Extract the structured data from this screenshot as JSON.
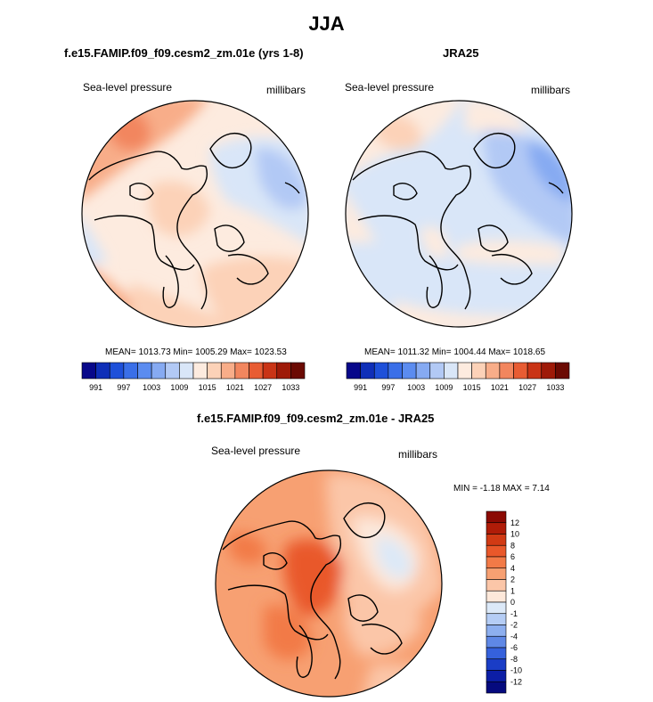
{
  "main_title": "JJA",
  "panels": [
    {
      "title": "f.e15.FAMIP.f09_f09.cesm2_zm.01e (yrs 1-8)",
      "variable": "Sea-level pressure",
      "units": "millibars",
      "stats": "MEAN= 1013.73  Min= 1005.29  Max= 1023.53"
    },
    {
      "title": "JRA25",
      "variable": "Sea-level pressure",
      "units": "millibars",
      "stats": "MEAN= 1011.32  Min= 1004.44  Max= 1018.65"
    },
    {
      "title": "f.e15.FAMIP.f09_f09.cesm2_zm.01e - JRA25",
      "variable": "Sea-level pressure",
      "units": "millibars",
      "stats": "MIN =  -1.18 MAX =   7.14"
    }
  ],
  "chart_data": [
    {
      "type": "heatmap",
      "projection": "north polar stereographic",
      "title": "f.e15.FAMIP.f09_f09.cesm2_zm.01e (yrs 1-8)",
      "variable": "Sea-level pressure",
      "units": "millibars",
      "mean": 1013.73,
      "min": 1005.29,
      "max": 1023.53,
      "colorbar": {
        "orientation": "horizontal",
        "levels": [
          991,
          994,
          997,
          1000,
          1003,
          1006,
          1009,
          1012,
          1015,
          1018,
          1021,
          1024,
          1027,
          1030,
          1033
        ],
        "tick_labels": [
          "991",
          "997",
          "1003",
          "1009",
          "1015",
          "1021",
          "1027",
          "1033"
        ],
        "colors": [
          "#08088a",
          "#0f2fb8",
          "#1e50d9",
          "#3a6fe8",
          "#5b8cf0",
          "#86aaf2",
          "#b2c9f5",
          "#d9e6f8",
          "#fdebdf",
          "#fcd2b8",
          "#f8ad89",
          "#f2865e",
          "#e85c33",
          "#c93416",
          "#9e1a08",
          "#6b0a03"
        ]
      }
    },
    {
      "type": "heatmap",
      "projection": "north polar stereographic",
      "title": "JRA25",
      "variable": "Sea-level pressure",
      "units": "millibars",
      "mean": 1011.32,
      "min": 1004.44,
      "max": 1018.65,
      "colorbar": {
        "orientation": "horizontal",
        "levels": [
          991,
          994,
          997,
          1000,
          1003,
          1006,
          1009,
          1012,
          1015,
          1018,
          1021,
          1024,
          1027,
          1030,
          1033
        ],
        "tick_labels": [
          "991",
          "997",
          "1003",
          "1009",
          "1015",
          "1021",
          "1027",
          "1033"
        ],
        "colors": [
          "#08088a",
          "#0f2fb8",
          "#1e50d9",
          "#3a6fe8",
          "#5b8cf0",
          "#86aaf2",
          "#b2c9f5",
          "#d9e6f8",
          "#fdebdf",
          "#fcd2b8",
          "#f8ad89",
          "#f2865e",
          "#e85c33",
          "#c93416",
          "#9e1a08",
          "#6b0a03"
        ]
      }
    },
    {
      "type": "heatmap",
      "projection": "north polar stereographic",
      "title": "f.e15.FAMIP.f09_f09.cesm2_zm.01e - JRA25",
      "variable": "Sea-level pressure",
      "units": "millibars",
      "min": -1.18,
      "max": 7.14,
      "colorbar": {
        "orientation": "vertical",
        "levels": [
          12,
          10,
          8,
          6,
          4,
          2,
          1,
          0,
          -1,
          -2,
          -4,
          -6,
          -8,
          -10,
          -12
        ],
        "tick_labels": [
          "12",
          "10",
          "8",
          "6",
          "4",
          "2",
          "1",
          "0",
          "-1",
          "-2",
          "-4",
          "-6",
          "-8",
          "-10",
          "-12"
        ],
        "colors": [
          "#8b0a03",
          "#b01c08",
          "#d13a14",
          "#e9582a",
          "#f27a47",
          "#f7a072",
          "#fbc6a8",
          "#fde8da",
          "#dce9f8",
          "#b5cdf5",
          "#8dafef",
          "#5f88e6",
          "#3561dc",
          "#1a3dc6",
          "#0c1ea6",
          "#050a7e"
        ]
      }
    }
  ]
}
